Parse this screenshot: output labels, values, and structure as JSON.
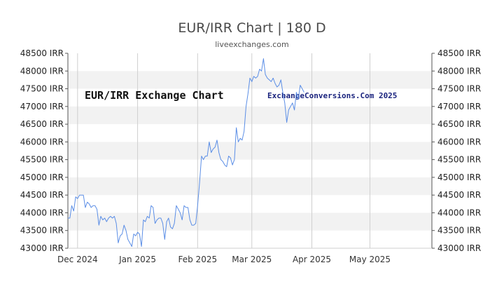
{
  "chart_data": {
    "type": "line",
    "title": "EUR/IRR Chart | 180 D",
    "subtitle": "liveexchanges.com",
    "watermark_left": "EUR/IRR Exchange Chart",
    "watermark_right": "ExchangeConversions.Com 2025",
    "xlabel": "",
    "ylabel": "",
    "y_ticks": [
      "43000 IRR",
      "43500 IRR",
      "44000 IRR",
      "44500 IRR",
      "45000 IRR",
      "45500 IRR",
      "46000 IRR",
      "46500 IRR",
      "47000 IRR",
      "47500 IRR",
      "48000 IRR",
      "48500 IRR"
    ],
    "ylim": [
      43000,
      48500
    ],
    "x_ticks": [
      {
        "label": "Dec 2024",
        "day": 5
      },
      {
        "label": "Jan 2025",
        "day": 36
      },
      {
        "label": "Feb 2025",
        "day": 67
      },
      {
        "label": "Mar 2025",
        "day": 95
      },
      {
        "label": "Apr 2025",
        "day": 126
      },
      {
        "label": "May 2025",
        "day": 156
      }
    ],
    "xlim": [
      0,
      188
    ],
    "grid": true,
    "line_color": "#5b8ee6",
    "band_color": "#f2f2f2",
    "series": [
      {
        "values": [
          [
            0,
            43850
          ],
          [
            1,
            43850
          ],
          [
            2,
            44200
          ],
          [
            3,
            44050
          ],
          [
            4,
            44450
          ],
          [
            5,
            44400
          ],
          [
            6,
            44500
          ],
          [
            7,
            44500
          ],
          [
            8,
            44500
          ],
          [
            9,
            44150
          ],
          [
            10,
            44300
          ],
          [
            11,
            44250
          ],
          [
            12,
            44150
          ],
          [
            13,
            44200
          ],
          [
            14,
            44200
          ],
          [
            15,
            44100
          ],
          [
            16,
            43650
          ],
          [
            17,
            43900
          ],
          [
            18,
            43800
          ],
          [
            19,
            43850
          ],
          [
            20,
            43750
          ],
          [
            21,
            43850
          ],
          [
            22,
            43900
          ],
          [
            23,
            43850
          ],
          [
            24,
            43900
          ],
          [
            25,
            43700
          ],
          [
            26,
            43150
          ],
          [
            27,
            43350
          ],
          [
            28,
            43400
          ],
          [
            29,
            43650
          ],
          [
            30,
            43500
          ],
          [
            31,
            43250
          ],
          [
            32,
            43150
          ],
          [
            33,
            43050
          ],
          [
            34,
            43400
          ],
          [
            35,
            43350
          ],
          [
            36,
            43450
          ],
          [
            37,
            43400
          ],
          [
            38,
            43050
          ],
          [
            39,
            43800
          ],
          [
            40,
            43750
          ],
          [
            41,
            43900
          ],
          [
            42,
            43850
          ],
          [
            43,
            44200
          ],
          [
            44,
            44150
          ],
          [
            45,
            43700
          ],
          [
            46,
            43800
          ],
          [
            47,
            43850
          ],
          [
            48,
            43850
          ],
          [
            49,
            43700
          ],
          [
            50,
            43250
          ],
          [
            51,
            43750
          ],
          [
            52,
            43850
          ],
          [
            53,
            43600
          ],
          [
            54,
            43550
          ],
          [
            55,
            43700
          ],
          [
            56,
            44200
          ],
          [
            57,
            44100
          ],
          [
            58,
            44000
          ],
          [
            59,
            43800
          ],
          [
            60,
            44200
          ],
          [
            61,
            44150
          ],
          [
            62,
            44150
          ],
          [
            63,
            43800
          ],
          [
            64,
            43650
          ],
          [
            65,
            43650
          ],
          [
            66,
            43700
          ],
          [
            67,
            44200
          ],
          [
            68,
            44850
          ],
          [
            69,
            45600
          ],
          [
            70,
            45500
          ],
          [
            71,
            45600
          ],
          [
            72,
            45600
          ],
          [
            73,
            46000
          ],
          [
            74,
            45700
          ],
          [
            75,
            45800
          ],
          [
            76,
            45850
          ],
          [
            77,
            46050
          ],
          [
            78,
            45700
          ],
          [
            79,
            45500
          ],
          [
            80,
            45450
          ],
          [
            81,
            45350
          ],
          [
            82,
            45300
          ],
          [
            83,
            45600
          ],
          [
            84,
            45550
          ],
          [
            85,
            45350
          ],
          [
            86,
            45500
          ],
          [
            87,
            46400
          ],
          [
            88,
            46000
          ],
          [
            89,
            46100
          ],
          [
            90,
            46050
          ],
          [
            91,
            46300
          ],
          [
            92,
            47000
          ],
          [
            93,
            47350
          ],
          [
            94,
            47800
          ],
          [
            95,
            47700
          ],
          [
            96,
            47850
          ],
          [
            97,
            47800
          ],
          [
            98,
            47850
          ],
          [
            99,
            48050
          ],
          [
            100,
            48000
          ],
          [
            101,
            48350
          ],
          [
            102,
            47900
          ],
          [
            103,
            47800
          ],
          [
            104,
            47750
          ],
          [
            105,
            47700
          ],
          [
            106,
            47800
          ],
          [
            107,
            47650
          ],
          [
            108,
            47550
          ],
          [
            109,
            47600
          ],
          [
            110,
            47750
          ],
          [
            111,
            47400
          ],
          [
            112,
            47100
          ],
          [
            113,
            46550
          ],
          [
            114,
            46900
          ],
          [
            115,
            47000
          ],
          [
            116,
            47100
          ],
          [
            117,
            46900
          ],
          [
            118,
            47400
          ],
          [
            119,
            47200
          ],
          [
            120,
            47600
          ],
          [
            121,
            47500
          ],
          [
            122,
            47400
          ]
        ]
      }
    ]
  }
}
